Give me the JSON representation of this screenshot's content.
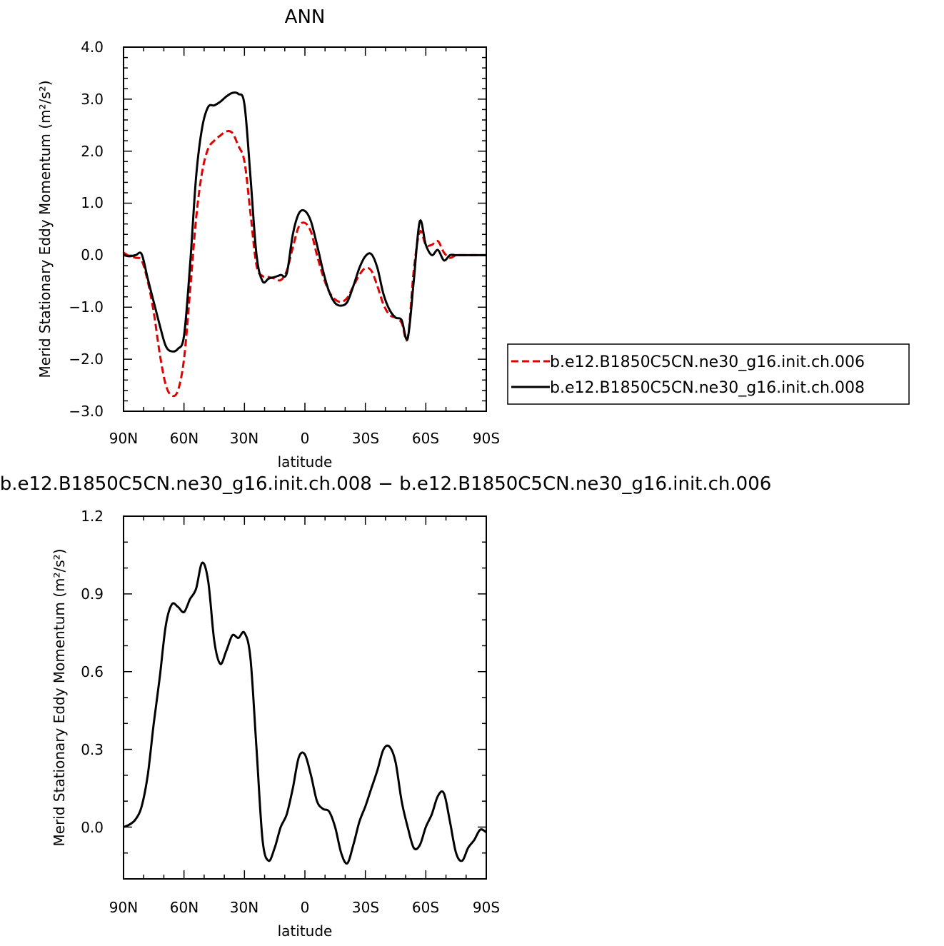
{
  "panels": [
    {
      "title": "ANN",
      "ylabel": "Merid Stationary Eddy Momentum (m²/s²)",
      "xlabel": "latitude",
      "xticks": [
        "90N",
        "60N",
        "30N",
        "0",
        "30S",
        "60S",
        "90S"
      ],
      "yticks": [
        "4.0",
        "3.0",
        "2.0",
        "1.0",
        "0.0",
        "−1.0",
        "−2.0",
        "−3.0"
      ],
      "legend": {
        "entries": [
          "b.e12.B1850C5CN.ne30_g16.init.ch.006",
          "b.e12.B1850C5CN.ne30_g16.init.ch.008"
        ]
      }
    },
    {
      "title": "b.e12.B1850C5CN.ne30_g16.init.ch.008 − b.e12.B1850C5CN.ne30_g16.init.ch.006",
      "ylabel": "Merid Stationary Eddy Momentum (m²/s²)",
      "xlabel": "latitude",
      "xticks": [
        "90N",
        "60N",
        "30N",
        "0",
        "30S",
        "60S",
        "90S"
      ],
      "yticks": [
        "1.2",
        "0.9",
        "0.6",
        "0.3",
        "0.0"
      ]
    }
  ],
  "chart_data": [
    {
      "type": "line",
      "title": "ANN",
      "xlabel": "latitude",
      "ylabel": "Merid Stationary Eddy Momentum (m²/s²)",
      "x_unit": "degrees latitude (90N = 90, 90S = -90)",
      "xlim": [
        90,
        -90
      ],
      "ylim": [
        -3.0,
        4.0
      ],
      "grid": false,
      "legend_position": "right",
      "x": [
        90,
        87,
        84,
        81,
        78,
        75,
        72,
        69,
        66,
        63,
        60,
        57,
        54,
        51,
        48,
        45,
        42,
        39,
        36,
        33,
        30,
        27,
        24,
        21,
        18,
        15,
        12,
        9,
        6,
        3,
        0,
        -3,
        -6,
        -9,
        -12,
        -15,
        -18,
        -21,
        -24,
        -27,
        -30,
        -33,
        -36,
        -39,
        -42,
        -45,
        -48,
        -51,
        -54,
        -57,
        -60,
        -63,
        -66,
        -69,
        -72,
        -75,
        -78,
        -81,
        -84,
        -87,
        -90
      ],
      "series": [
        {
          "name": "b.e12.B1850C5CN.ne30_g16.init.ch.006",
          "color": "#e00000",
          "dash": "dashed",
          "values": [
            0.05,
            -0.02,
            -0.05,
            -0.1,
            -0.5,
            -1.1,
            -1.9,
            -2.5,
            -2.7,
            -2.6,
            -2.0,
            -0.7,
            0.7,
            1.6,
            2.05,
            2.2,
            2.3,
            2.38,
            2.35,
            2.1,
            1.8,
            0.8,
            -0.2,
            -0.4,
            -0.42,
            -0.45,
            -0.48,
            -0.3,
            0.15,
            0.55,
            0.62,
            0.45,
            0.0,
            -0.4,
            -0.7,
            -0.85,
            -0.9,
            -0.82,
            -0.6,
            -0.38,
            -0.25,
            -0.3,
            -0.6,
            -0.95,
            -1.15,
            -1.2,
            -1.3,
            -1.6,
            -0.3,
            0.45,
            0.2,
            0.2,
            0.27,
            0.05,
            -0.05,
            0.0,
            0.0,
            0.0,
            0.0,
            0.0,
            0.0
          ]
        },
        {
          "name": "b.e12.B1850C5CN.ne30_g16.init.ch.008",
          "color": "#000000",
          "dash": "solid",
          "values": [
            0.0,
            -0.02,
            0.0,
            0.02,
            -0.45,
            -0.9,
            -1.35,
            -1.75,
            -1.85,
            -1.8,
            -1.55,
            -0.2,
            1.5,
            2.45,
            2.85,
            2.88,
            2.95,
            3.05,
            3.12,
            3.1,
            2.9,
            1.5,
            0.0,
            -0.5,
            -0.45,
            -0.42,
            -0.38,
            -0.35,
            0.4,
            0.8,
            0.85,
            0.65,
            0.2,
            -0.3,
            -0.7,
            -0.92,
            -0.97,
            -0.9,
            -0.6,
            -0.25,
            -0.02,
            0.02,
            -0.25,
            -0.75,
            -1.05,
            -1.2,
            -1.25,
            -1.6,
            -0.5,
            0.65,
            0.2,
            0.0,
            0.1,
            -0.1,
            0.0,
            0.0,
            0.0,
            0.0,
            0.0,
            0.0,
            0.0
          ]
        }
      ]
    },
    {
      "type": "line",
      "title": "b.e12.B1850C5CN.ne30_g16.init.ch.008 − b.e12.B1850C5CN.ne30_g16.init.ch.006",
      "xlabel": "latitude",
      "ylabel": "Merid Stationary Eddy Momentum (m²/s²)",
      "x_unit": "degrees latitude (90N = 90, 90S = -90)",
      "xlim": [
        90,
        -90
      ],
      "ylim": [
        -0.2,
        1.2
      ],
      "grid": false,
      "x": [
        90,
        87,
        84,
        81,
        78,
        75,
        72,
        69,
        66,
        63,
        60,
        57,
        54,
        51,
        48,
        45,
        42,
        39,
        36,
        33,
        30,
        27,
        24,
        21,
        18,
        15,
        12,
        9,
        6,
        3,
        0,
        -3,
        -6,
        -9,
        -12,
        -15,
        -18,
        -21,
        -24,
        -27,
        -30,
        -33,
        -36,
        -39,
        -42,
        -45,
        -48,
        -51,
        -54,
        -57,
        -60,
        -63,
        -66,
        -69,
        -72,
        -75,
        -78,
        -81,
        -84,
        -87,
        -90
      ],
      "series": [
        {
          "color": "#000000",
          "dash": "solid",
          "values": [
            0.0,
            0.01,
            0.03,
            0.08,
            0.2,
            0.4,
            0.58,
            0.78,
            0.86,
            0.85,
            0.83,
            0.88,
            0.92,
            1.02,
            0.95,
            0.72,
            0.63,
            0.68,
            0.74,
            0.73,
            0.75,
            0.65,
            0.3,
            -0.05,
            -0.13,
            -0.08,
            0.0,
            0.05,
            0.15,
            0.27,
            0.28,
            0.2,
            0.1,
            0.07,
            0.06,
            0.0,
            -0.1,
            -0.14,
            -0.07,
            0.02,
            0.08,
            0.15,
            0.22,
            0.3,
            0.31,
            0.25,
            0.1,
            0.0,
            -0.08,
            -0.07,
            0.0,
            0.05,
            0.12,
            0.13,
            0.02,
            -0.1,
            -0.13,
            -0.08,
            -0.05,
            -0.01,
            -0.02
          ]
        }
      ]
    }
  ]
}
